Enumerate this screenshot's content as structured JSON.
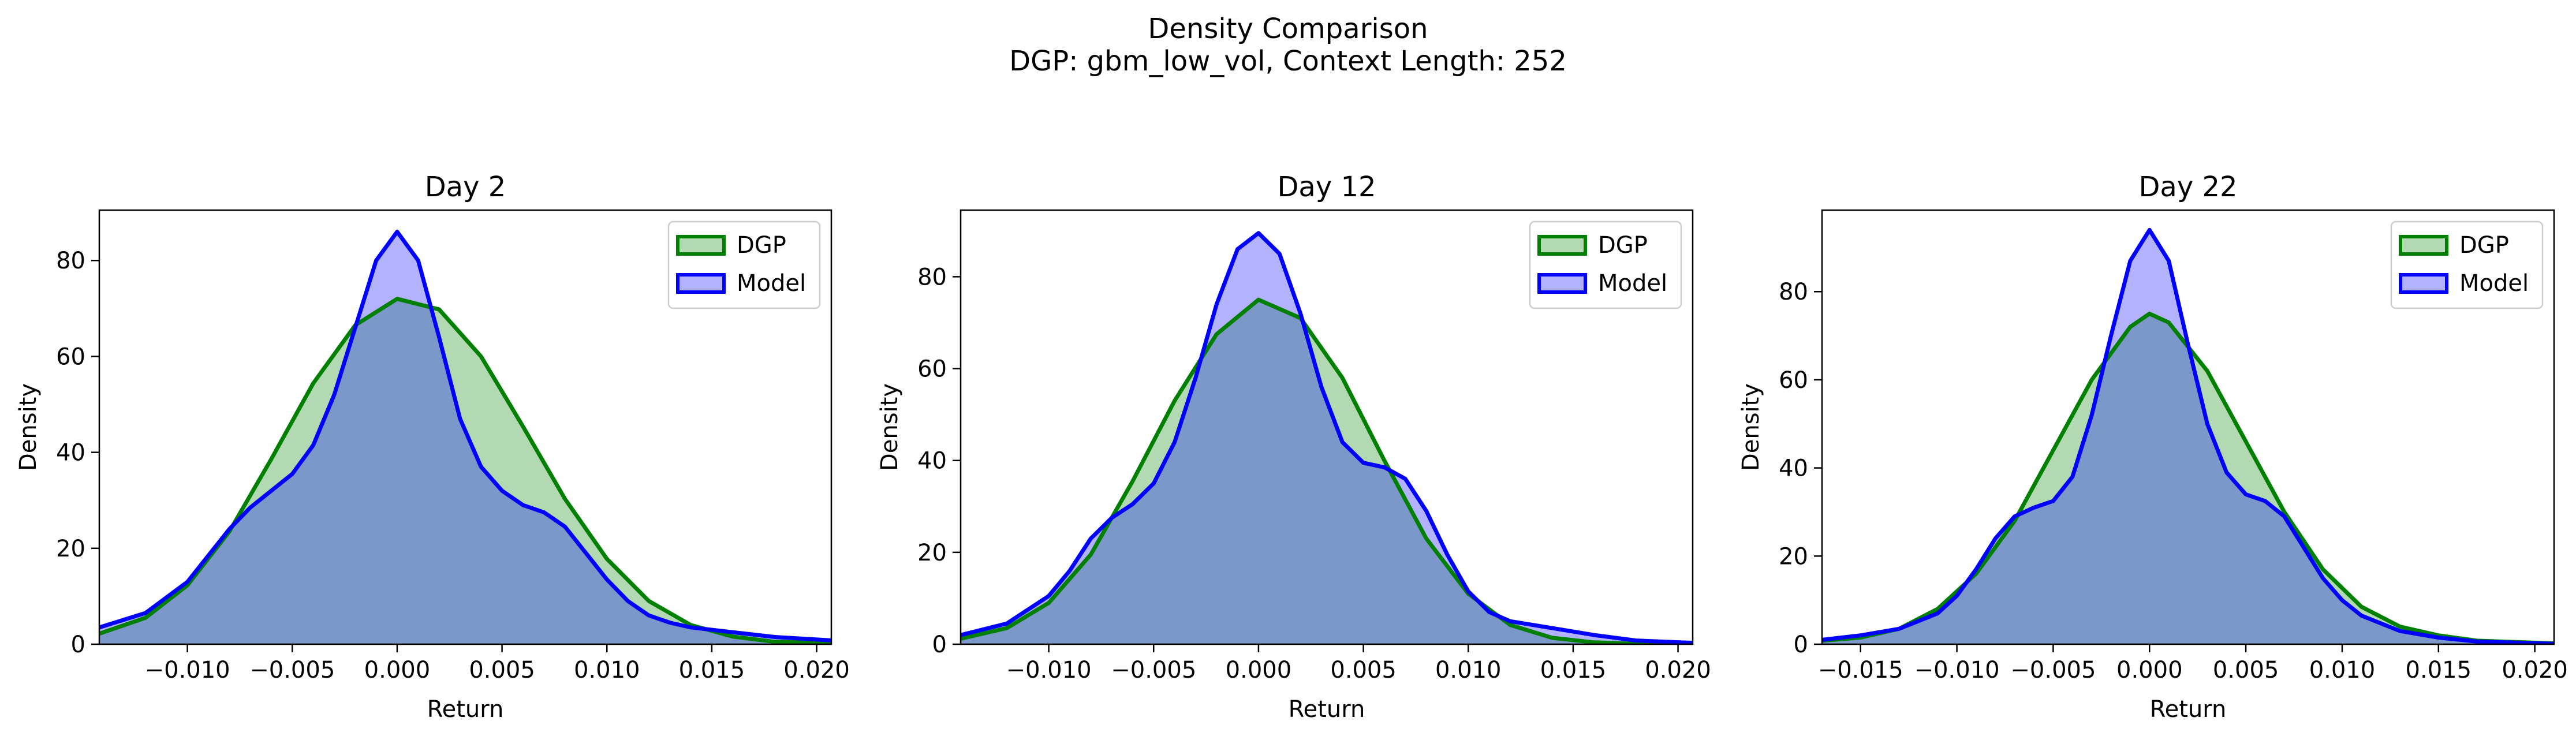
{
  "figure": {
    "title_line1": "Density Comparison",
    "title_line2": "DGP: gbm_low_vol, Context Length: 252"
  },
  "colors": {
    "dgp_line": "#008000",
    "dgp_fill": "#b3d9b3",
    "model_line": "#0000ff",
    "model_fill": "#aaaaff",
    "overlap_fill": "#7f98c7"
  },
  "chart_data": [
    {
      "type": "area",
      "title": "Day 2",
      "xlabel": "Return",
      "ylabel": "Density",
      "xlim": [
        -0.0142,
        0.0207
      ],
      "ylim": [
        0,
        90.5
      ],
      "xticks": [
        -0.01,
        -0.005,
        0.0,
        0.005,
        0.01,
        0.015,
        0.02
      ],
      "xtick_labels": [
        "−0.010",
        "−0.005",
        "0.000",
        "0.005",
        "0.010",
        "0.015",
        "0.020"
      ],
      "yticks": [
        0,
        20,
        40,
        60,
        80
      ],
      "ytick_labels": [
        "0",
        "20",
        "40",
        "60",
        "80"
      ],
      "legend": {
        "position": "upper right",
        "entries": [
          "DGP",
          "Model"
        ]
      },
      "series": [
        {
          "name": "DGP",
          "x": [
            -0.0142,
            -0.012,
            -0.01,
            -0.008,
            -0.006,
            -0.004,
            -0.002,
            0.0,
            0.002,
            0.004,
            0.006,
            0.008,
            0.01,
            0.012,
            0.014,
            0.016,
            0.018,
            0.0207
          ],
          "y": [
            2.2,
            5.5,
            12.3,
            23.5,
            38.6,
            54.4,
            66.5,
            72.0,
            69.8,
            60.0,
            45.4,
            30.3,
            17.8,
            9.0,
            4.0,
            1.6,
            0.5,
            0.2
          ]
        },
        {
          "name": "Model",
          "x": [
            -0.0142,
            -0.012,
            -0.01,
            -0.008,
            -0.007,
            -0.006,
            -0.005,
            -0.004,
            -0.003,
            -0.002,
            -0.001,
            0.0,
            0.001,
            0.002,
            0.003,
            0.004,
            0.005,
            0.006,
            0.007,
            0.008,
            0.009,
            0.01,
            0.011,
            0.012,
            0.013,
            0.014,
            0.016,
            0.018,
            0.0207
          ],
          "y": [
            3.5,
            6.5,
            13.0,
            24.0,
            28.5,
            32.0,
            35.5,
            41.5,
            52.0,
            66.0,
            80.0,
            86.0,
            80.0,
            64.0,
            47.0,
            37.0,
            32.0,
            29.0,
            27.5,
            24.5,
            19.0,
            13.5,
            9.0,
            6.0,
            4.5,
            3.5,
            2.5,
            1.5,
            0.8
          ]
        }
      ]
    },
    {
      "type": "area",
      "title": "Day 12",
      "xlabel": "Return",
      "ylabel": "Density",
      "xlim": [
        -0.0142,
        0.0207
      ],
      "ylim": [
        0,
        94.5
      ],
      "xticks": [
        -0.01,
        -0.005,
        0.0,
        0.005,
        0.01,
        0.015,
        0.02
      ],
      "xtick_labels": [
        "−0.010",
        "−0.005",
        "0.000",
        "0.005",
        "0.010",
        "0.015",
        "0.020"
      ],
      "yticks": [
        0,
        20,
        40,
        60,
        80
      ],
      "ytick_labels": [
        "0",
        "20",
        "40",
        "60",
        "80"
      ],
      "legend": {
        "position": "upper right",
        "entries": [
          "DGP",
          "Model"
        ]
      },
      "series": [
        {
          "name": "DGP",
          "x": [
            -0.0142,
            -0.012,
            -0.01,
            -0.008,
            -0.006,
            -0.004,
            -0.002,
            0.0,
            0.002,
            0.004,
            0.006,
            0.008,
            0.01,
            0.012,
            0.014,
            0.016,
            0.018,
            0.0207
          ],
          "y": [
            1.2,
            3.5,
            9.0,
            19.5,
            35.5,
            53.0,
            67.5,
            75.0,
            71.0,
            58.0,
            40.0,
            23.0,
            11.0,
            4.2,
            1.4,
            0.4,
            0.1,
            0.0
          ]
        },
        {
          "name": "Model",
          "x": [
            -0.0142,
            -0.012,
            -0.01,
            -0.009,
            -0.008,
            -0.007,
            -0.006,
            -0.005,
            -0.004,
            -0.003,
            -0.002,
            -0.001,
            0.0,
            0.001,
            0.002,
            0.003,
            0.004,
            0.005,
            0.006,
            0.007,
            0.008,
            0.009,
            0.01,
            0.011,
            0.012,
            0.014,
            0.016,
            0.018,
            0.0207
          ],
          "y": [
            2.0,
            4.5,
            10.5,
            16.0,
            23.0,
            27.5,
            30.5,
            35.0,
            44.0,
            58.0,
            74.0,
            86.0,
            89.5,
            85.0,
            72.0,
            56.0,
            44.0,
            39.5,
            38.5,
            36.0,
            29.0,
            19.5,
            11.5,
            7.0,
            5.0,
            3.5,
            2.0,
            0.8,
            0.3
          ]
        }
      ]
    },
    {
      "type": "area",
      "title": "Day 22",
      "xlabel": "Return",
      "ylabel": "Density",
      "xlim": [
        -0.017,
        0.021
      ],
      "ylim": [
        0,
        98.5
      ],
      "xticks": [
        -0.015,
        -0.01,
        -0.005,
        0.0,
        0.005,
        0.01,
        0.015,
        0.02
      ],
      "xtick_labels": [
        "−0.015",
        "−0.010",
        "−0.005",
        "0.000",
        "0.005",
        "0.010",
        "0.015",
        "0.020"
      ],
      "yticks": [
        0,
        20,
        40,
        60,
        80
      ],
      "ytick_labels": [
        "0",
        "20",
        "40",
        "60",
        "80"
      ],
      "legend": {
        "position": "upper right",
        "entries": [
          "DGP",
          "Model"
        ]
      },
      "series": [
        {
          "name": "DGP",
          "x": [
            -0.017,
            -0.015,
            -0.013,
            -0.011,
            -0.009,
            -0.007,
            -0.005,
            -0.003,
            -0.001,
            0.0,
            0.001,
            0.003,
            0.005,
            0.007,
            0.009,
            0.011,
            0.013,
            0.015,
            0.017,
            0.021
          ],
          "y": [
            0.8,
            1.5,
            3.5,
            8.0,
            16.0,
            28.0,
            44.0,
            60.0,
            72.0,
            75.0,
            73.0,
            62.0,
            46.0,
            30.0,
            17.0,
            8.5,
            4.0,
            2.0,
            0.8,
            0.2
          ]
        },
        {
          "name": "Model",
          "x": [
            -0.017,
            -0.015,
            -0.013,
            -0.011,
            -0.01,
            -0.009,
            -0.008,
            -0.007,
            -0.006,
            -0.005,
            -0.004,
            -0.003,
            -0.002,
            -0.001,
            0.0,
            0.001,
            0.002,
            0.003,
            0.004,
            0.005,
            0.006,
            0.007,
            0.008,
            0.009,
            0.01,
            0.011,
            0.013,
            0.015,
            0.017,
            0.021
          ],
          "y": [
            1.0,
            2.0,
            3.5,
            7.0,
            11.0,
            17.0,
            24.0,
            29.0,
            31.0,
            32.5,
            38.0,
            52.0,
            70.0,
            87.0,
            94.0,
            87.0,
            68.0,
            50.0,
            39.0,
            34.0,
            32.5,
            29.0,
            22.0,
            15.0,
            10.0,
            6.5,
            3.0,
            1.5,
            0.6,
            0.1
          ]
        }
      ]
    }
  ]
}
